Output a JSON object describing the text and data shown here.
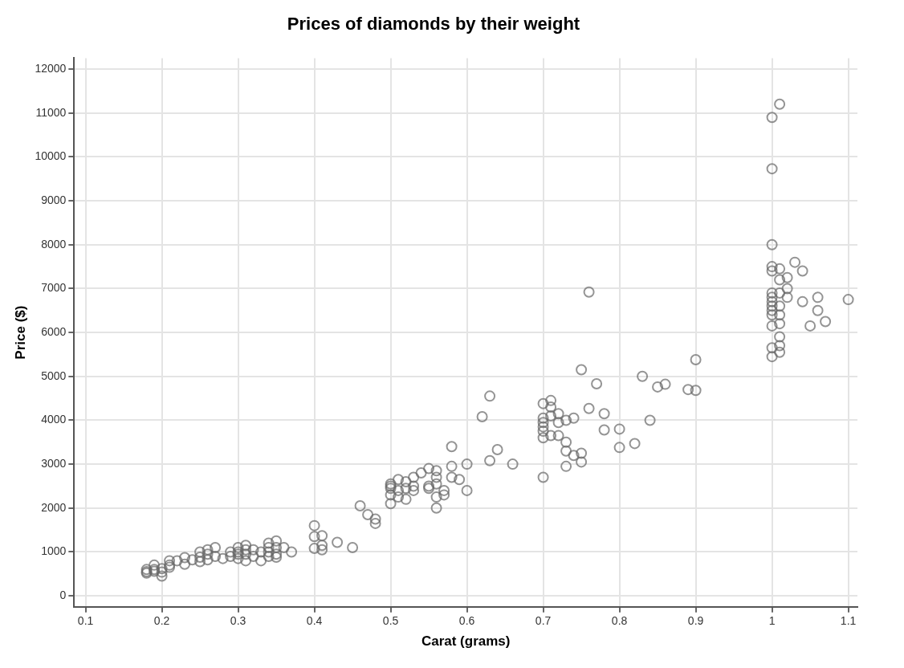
{
  "chart_data": {
    "type": "scatter",
    "title": "Prices of diamonds by their weight",
    "xlabel": "Carat (grams)",
    "ylabel": "Price ($)",
    "xlim": [
      0.085,
      1.112
    ],
    "ylim": [
      -250,
      12250
    ],
    "xticks": [
      0.1,
      0.2,
      0.3,
      0.4,
      0.5,
      0.6,
      0.7,
      0.8,
      0.9,
      1,
      1.1
    ],
    "yticks": [
      0,
      1000,
      2000,
      3000,
      4000,
      5000,
      6000,
      7000,
      8000,
      9000,
      10000,
      11000,
      12000
    ],
    "grid": true,
    "marker": "circle",
    "series": [
      {
        "color": "#666666",
        "x": [
          0.18,
          0.18,
          0.18,
          0.19,
          0.19,
          0.19,
          0.2,
          0.2,
          0.2,
          0.21,
          0.21,
          0.21,
          0.22,
          0.23,
          0.23,
          0.24,
          0.25,
          0.25,
          0.25,
          0.26,
          0.26,
          0.26,
          0.27,
          0.27,
          0.28,
          0.29,
          0.29,
          0.3,
          0.3,
          0.3,
          0.3,
          0.31,
          0.31,
          0.31,
          0.31,
          0.32,
          0.32,
          0.33,
          0.33,
          0.34,
          0.34,
          0.34,
          0.34,
          0.35,
          0.35,
          0.35,
          0.35,
          0.36,
          0.37,
          0.4,
          0.4,
          0.4,
          0.41,
          0.41,
          0.41,
          0.43,
          0.45,
          0.46,
          0.47,
          0.48,
          0.48,
          0.5,
          0.5,
          0.5,
          0.5,
          0.5,
          0.51,
          0.51,
          0.51,
          0.52,
          0.52,
          0.52,
          0.53,
          0.53,
          0.53,
          0.54,
          0.55,
          0.55,
          0.55,
          0.56,
          0.56,
          0.56,
          0.56,
          0.56,
          0.57,
          0.57,
          0.58,
          0.58,
          0.58,
          0.59,
          0.6,
          0.6,
          0.62,
          0.63,
          0.63,
          0.64,
          0.66,
          0.7,
          0.7,
          0.7,
          0.7,
          0.7,
          0.7,
          0.7,
          0.71,
          0.71,
          0.71,
          0.71,
          0.72,
          0.72,
          0.72,
          0.73,
          0.73,
          0.73,
          0.73,
          0.74,
          0.74,
          0.75,
          0.75,
          0.75,
          0.76,
          0.76,
          0.77,
          0.78,
          0.78,
          0.8,
          0.8,
          0.82,
          0.83,
          0.84,
          0.85,
          0.86,
          0.89,
          0.9,
          0.9,
          1,
          1.01,
          1,
          1,
          1,
          1,
          1.01,
          1.01,
          1.02,
          1.02,
          1.03,
          1.04,
          1.01,
          1,
          1,
          1,
          1,
          1,
          1,
          1,
          1,
          1,
          1.01,
          1.01,
          1.01,
          1.01,
          1.01,
          1.01,
          1.02,
          1.04,
          1.05,
          1.06,
          1.06,
          1.07,
          1.1
        ],
        "values": [
          550,
          600,
          520,
          600,
          700,
          560,
          620,
          450,
          540,
          700,
          800,
          650,
          800,
          720,
          870,
          820,
          780,
          1000,
          880,
          1050,
          820,
          950,
          1100,
          900,
          850,
          1000,
          900,
          1000,
          850,
          1100,
          950,
          1150,
          1050,
          800,
          950,
          1050,
          900,
          800,
          1000,
          1200,
          1100,
          900,
          1000,
          1250,
          1100,
          950,
          880,
          1100,
          1000,
          1600,
          1350,
          1080,
          1370,
          1150,
          1050,
          1220,
          1100,
          2050,
          1850,
          1750,
          1650,
          2100,
          2300,
          2450,
          2500,
          2550,
          2650,
          2400,
          2250,
          2600,
          2450,
          2200,
          2500,
          2700,
          2400,
          2800,
          2900,
          2500,
          2450,
          2850,
          2700,
          2550,
          2000,
          2250,
          2400,
          2300,
          3400,
          2950,
          2700,
          2650,
          3000,
          2400,
          4080,
          4550,
          3080,
          3330,
          3000,
          4380,
          4050,
          3950,
          3850,
          3750,
          3600,
          2700,
          4450,
          4300,
          4100,
          3650,
          4150,
          3950,
          3650,
          4000,
          3500,
          3300,
          2950,
          4050,
          3200,
          5150,
          3250,
          3050,
          6920,
          4270,
          4830,
          4150,
          3780,
          3800,
          3380,
          3470,
          5000,
          4000,
          4760,
          4820,
          4700,
          4680,
          5380,
          10900,
          11200,
          9730,
          8000,
          7500,
          7400,
          7450,
          7200,
          7250,
          7000,
          7600,
          7400,
          6900,
          6900,
          6800,
          6700,
          6600,
          6500,
          6400,
          6150,
          5650,
          5450,
          6600,
          6400,
          6200,
          5900,
          5700,
          5550,
          6800,
          6700,
          6150,
          6800,
          6500,
          6250,
          6750
        ]
      }
    ]
  }
}
